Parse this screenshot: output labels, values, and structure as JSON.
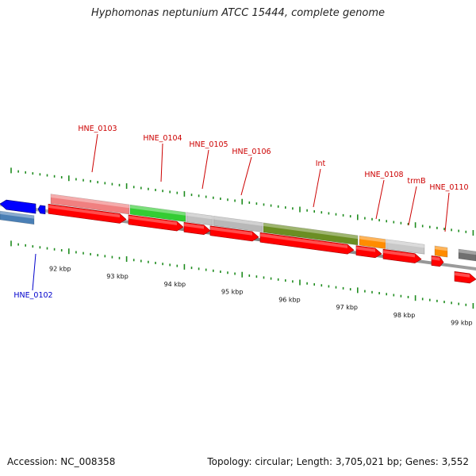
{
  "title": "Hyphomonas neptunium ATCC 15444, complete genome",
  "footer": {
    "accession": "Accession: NC_008358",
    "stats": "Topology: circular; Length: 3,705,021 bp; Genes: 3,552"
  },
  "colors": {
    "forward_label": "#cc0000",
    "reverse_label": "#0000cc",
    "ticks": "#1e8c1e",
    "backbone": "#8a8a8a",
    "cds": "#ff0000"
  },
  "kbp_labels": [
    "92 kbp",
    "93 kbp",
    "94 kbp",
    "95 kbp",
    "96 kbp",
    "97 kbp",
    "98 kbp",
    "99 kbp"
  ],
  "forward_genes": [
    {
      "name": "HNE_0103",
      "label": "HNE_0103",
      "color": "#f08080"
    },
    {
      "name": "HNE_0104",
      "label": "HNE_0104",
      "color": "#33cc33"
    },
    {
      "name": "HNE_0105",
      "label": "HNE_0105",
      "color": "#c0c0c0"
    },
    {
      "name": "HNE_0106",
      "label": "HNE_0106",
      "color": "#b8b8b8"
    },
    {
      "name": "int",
      "label": "Int",
      "color": "#6b8e23"
    },
    {
      "name": "HNE_0108",
      "label": "HNE_0108",
      "color": "#ff8c00"
    },
    {
      "name": "trmB",
      "label": "trmB",
      "color": "#c8c8c8"
    },
    {
      "name": "HNE_0110",
      "label": "HNE_0110",
      "color": "#ff8c00"
    },
    {
      "name": "next-gene",
      "label": "",
      "color": "#707070"
    }
  ],
  "reverse_genes": [
    {
      "name": "HNE_0102",
      "label": "HNE_0102",
      "color": "#0000ff"
    },
    {
      "name": "HNE_0102-product",
      "label": "",
      "color": "#4a7fb5"
    }
  ]
}
